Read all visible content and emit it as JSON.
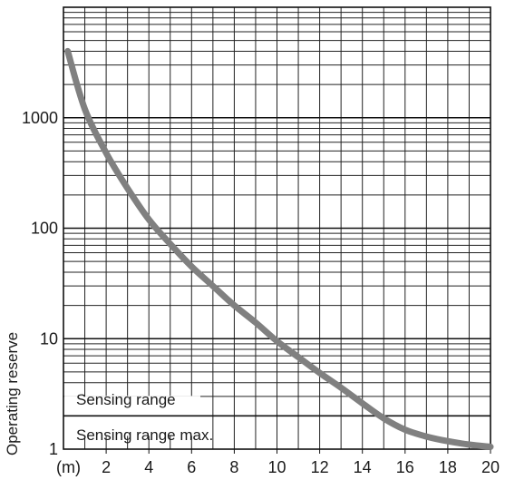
{
  "chart_data": {
    "type": "line",
    "title": "",
    "xlabel": "",
    "ylabel": "Operating reserve",
    "x_unit_label": "(m)",
    "x_ticks": [
      2,
      4,
      6,
      8,
      10,
      12,
      14,
      16,
      18,
      20
    ],
    "x_tick_labels": [
      "2",
      "4",
      "6",
      "8",
      "10",
      "12",
      "14",
      "16",
      "18",
      "20"
    ],
    "y_ticks": [
      1,
      10,
      100,
      1000
    ],
    "y_tick_labels": [
      "1",
      "10",
      "100",
      "1000"
    ],
    "xlim": [
      0,
      20
    ],
    "ylim": [
      1,
      10000
    ],
    "y_scale": "log",
    "grid": true,
    "line_color": "#808080",
    "series": [
      {
        "values": [
          {
            "x": 0.2,
            "y": 4000
          },
          {
            "x": 1,
            "y": 1200
          },
          {
            "x": 2,
            "y": 480
          },
          {
            "x": 3,
            "y": 230
          },
          {
            "x": 4,
            "y": 120
          },
          {
            "x": 5,
            "y": 72
          },
          {
            "x": 6,
            "y": 45
          },
          {
            "x": 7,
            "y": 30
          },
          {
            "x": 8,
            "y": 20
          },
          {
            "x": 9,
            "y": 14
          },
          {
            "x": 10,
            "y": 9.5
          },
          {
            "x": 11,
            "y": 6.8
          },
          {
            "x": 12,
            "y": 4.9
          },
          {
            "x": 13,
            "y": 3.6
          },
          {
            "x": 14,
            "y": 2.6
          },
          {
            "x": 15,
            "y": 1.9
          },
          {
            "x": 16,
            "y": 1.5
          },
          {
            "x": 17,
            "y": 1.3
          },
          {
            "x": 18,
            "y": 1.18
          },
          {
            "x": 19,
            "y": 1.1
          },
          {
            "x": 20,
            "y": 1.05
          }
        ]
      }
    ],
    "annotations": [
      {
        "text": "Sensing range",
        "y": 2,
        "position": "above-line"
      },
      {
        "text": "Sensing range max.",
        "y": 2,
        "position": "below-line"
      }
    ],
    "threshold_line_y": 2
  }
}
